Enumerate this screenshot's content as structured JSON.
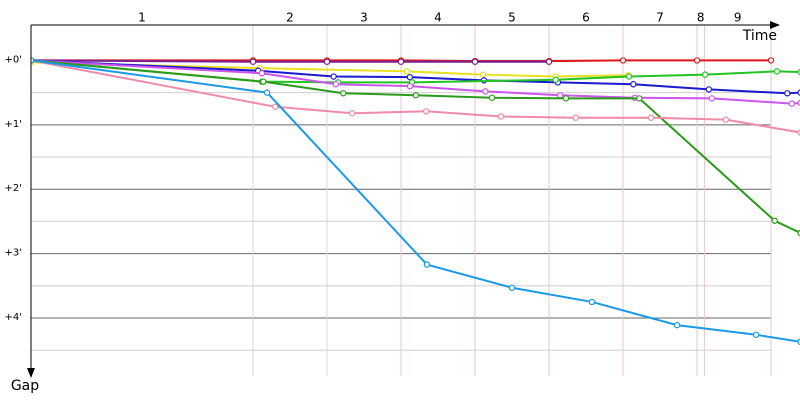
{
  "chart_data": {
    "type": "line",
    "x_label": "Time",
    "y_label": "Gap",
    "xlim": [
      0,
      10.4
    ],
    "ylim": [
      -0.55,
      4.9
    ],
    "xticks": [
      0,
      3,
      4,
      5,
      6,
      7,
      8,
      9,
      9.1,
      10
    ],
    "lap_labels": [
      1,
      2,
      3,
      4,
      5,
      6,
      7,
      8,
      9
    ],
    "yticks": [
      {
        "value": 0,
        "label": "+0'"
      },
      {
        "value": 1,
        "label": "+1'"
      },
      {
        "value": 2,
        "label": "+2'"
      },
      {
        "value": 3,
        "label": "+3'"
      },
      {
        "value": 4,
        "label": "+4'"
      }
    ],
    "minor_yticks": [
      0.5,
      1.5,
      2.5,
      3.5,
      4.5
    ],
    "grid": true,
    "series": [
      {
        "color": "#e0151a",
        "x": [
          0,
          3.0,
          4.0,
          5.0,
          6.0,
          7.0,
          8.0,
          9.0,
          10.0
        ],
        "values": [
          0,
          0,
          0,
          0,
          0.01,
          0.01,
          0,
          0,
          0
        ]
      },
      {
        "color": "#7a1f8f",
        "x": [
          0,
          3.0,
          4.0,
          5.0,
          6.0,
          7.0
        ],
        "values": [
          0,
          0.02,
          0.02,
          0.02,
          0.02,
          0.02
        ]
      },
      {
        "color": "#e8e020",
        "x": [
          0,
          3.09,
          5.08,
          6.11,
          7.09,
          8.07
        ],
        "values": [
          0.03,
          0.12,
          0.17,
          0.22,
          0.25,
          0.23
        ]
      },
      {
        "color": "#1a1ad0",
        "x": [
          0,
          3.07,
          4.09,
          5.12,
          6.12,
          7.12,
          8.14,
          9.16,
          10.22,
          10.4
        ],
        "values": [
          0,
          0.16,
          0.25,
          0.26,
          0.31,
          0.34,
          0.37,
          0.45,
          0.51,
          0.5
        ]
      },
      {
        "color": "#22c422",
        "x": [
          0,
          3.12,
          4.15,
          5.15,
          7.09,
          8.08,
          9.11,
          10.08,
          10.4
        ],
        "values": [
          0,
          0.33,
          0.34,
          0.34,
          0.3,
          0.25,
          0.22,
          0.17,
          0.18
        ]
      },
      {
        "color": "#cc55ee",
        "x": [
          0,
          3.12,
          4.12,
          5.12,
          6.14,
          7.15,
          8.16,
          9.2,
          10.28,
          10.4
        ],
        "values": [
          0,
          0.2,
          0.37,
          0.4,
          0.48,
          0.54,
          0.58,
          0.59,
          0.67,
          0.66
        ]
      },
      {
        "color": "#2a9a1a",
        "x": [
          0,
          3.14,
          4.22,
          5.2,
          6.23,
          7.23,
          8.22,
          10.05,
          10.4
        ],
        "values": [
          0,
          0.33,
          0.51,
          0.54,
          0.58,
          0.59,
          0.59,
          2.49,
          2.68
        ]
      },
      {
        "color": "#f08aa8",
        "x": [
          0,
          3.3,
          4.34,
          5.34,
          6.35,
          7.36,
          8.38,
          9.39,
          10.4
        ],
        "values": [
          0,
          0.72,
          0.82,
          0.79,
          0.87,
          0.89,
          0.89,
          0.92,
          1.12
        ]
      },
      {
        "color": "#1a9ae8",
        "x": [
          0,
          3.19,
          5.35,
          6.5,
          7.58,
          8.73,
          9.8,
          10.4
        ],
        "values": [
          0,
          0.5,
          3.17,
          3.53,
          3.75,
          4.11,
          4.26,
          4.37
        ]
      }
    ]
  }
}
